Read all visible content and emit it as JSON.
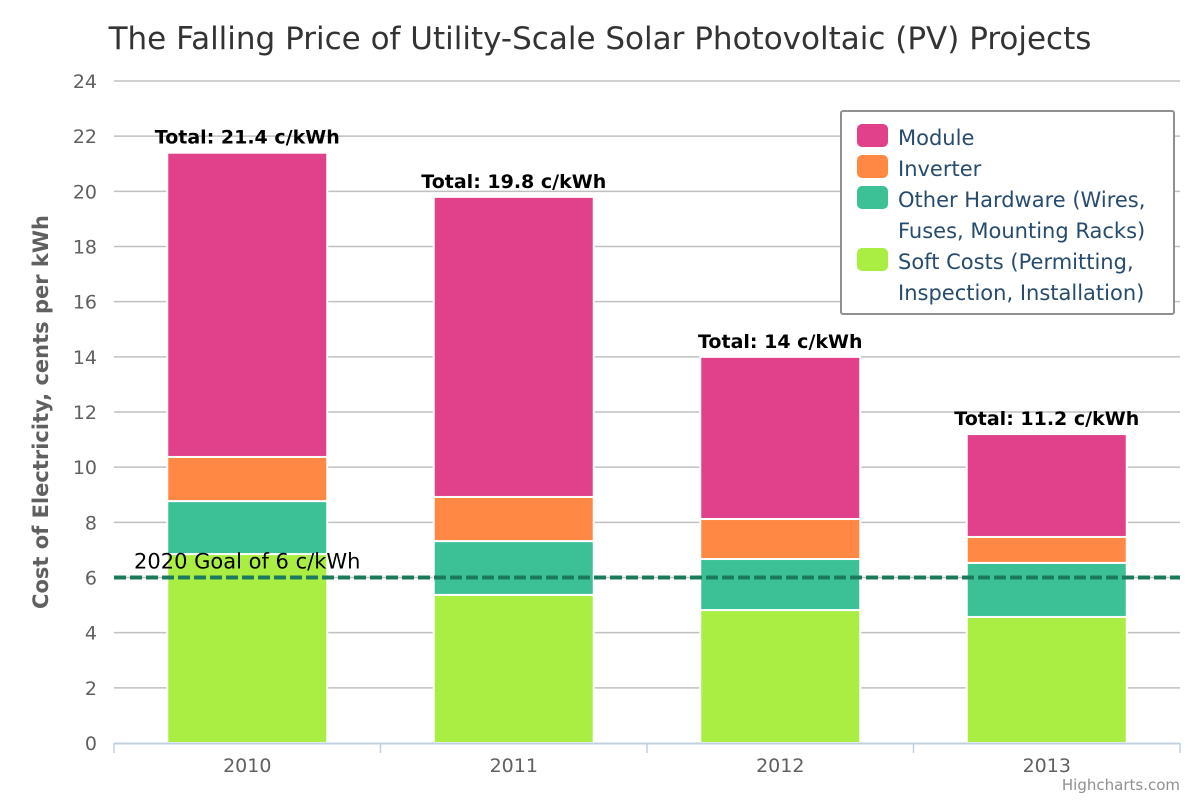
{
  "chart_data": {
    "type": "bar",
    "stacked": true,
    "title": "The Falling Price of Utility-Scale Solar Photovoltaic (PV) Projects",
    "xlabel": "",
    "ylabel": "Cost of Electricity, cents per kWh",
    "ylim": [
      0,
      24
    ],
    "yticks": [
      0,
      2,
      4,
      6,
      8,
      10,
      12,
      14,
      16,
      18,
      20,
      22,
      24
    ],
    "grid": true,
    "categories": [
      "2010",
      "2011",
      "2012",
      "2013"
    ],
    "series": [
      {
        "name": "Soft Costs (Permitting, Inspection, Installation)",
        "legend_lines": [
          "Soft Costs (Permitting,",
          "Inspection, Installation)"
        ],
        "color": "#aaee44",
        "values": [
          6.85,
          5.37,
          4.82,
          4.57
        ]
      },
      {
        "name": "Other Hardware (Wires, Fuses, Mounting Racks)",
        "legend_lines": [
          "Other Hardware (Wires,",
          "Fuses, Mounting Racks)"
        ],
        "color": "#3cc197",
        "values": [
          1.92,
          1.95,
          1.85,
          1.96
        ]
      },
      {
        "name": "Inverter",
        "legend_lines": [
          "Inverter"
        ],
        "color": "#ff8844",
        "values": [
          1.6,
          1.6,
          1.45,
          0.94
        ]
      },
      {
        "name": "Module",
        "legend_lines": [
          "Module"
        ],
        "color": "#e0418a",
        "values": [
          11.03,
          10.88,
          5.88,
          3.73
        ]
      }
    ],
    "legend_order": [
      "Module",
      "Inverter",
      "Other Hardware (Wires, Fuses, Mounting Racks)",
      "Soft Costs (Permitting, Inspection, Installation)"
    ],
    "legend_position": "top-right",
    "totals": [
      "Total: 21.4 c/kWh",
      "Total: 19.8 c/kWh",
      "Total: 14 c/kWh",
      "Total: 11.2 c/kWh"
    ],
    "plot_line": {
      "value": 6,
      "label": "2020 Goal of 6 c/kWh",
      "color": "#1c7a5c",
      "style": "dashed"
    },
    "credits": "Highcharts.com"
  }
}
